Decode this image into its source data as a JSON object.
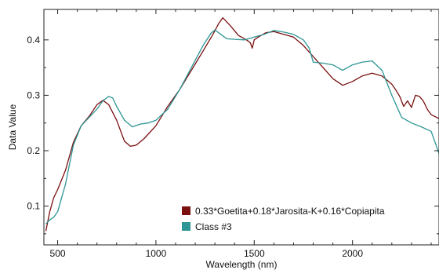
{
  "chart_data": {
    "type": "line",
    "xlabel": "Wavelength (nm)",
    "ylabel": "Data Value",
    "xlim": [
      430,
      2440
    ],
    "ylim": [
      0.03,
      0.455
    ],
    "xticks": [
      500,
      1000,
      1500,
      2000
    ],
    "yticks": [
      0.1,
      0.2,
      0.3,
      0.4
    ],
    "x_tick_labels": [
      "500",
      "1000",
      "1500",
      "2000"
    ],
    "y_tick_labels": [
      "0.1",
      "0.2",
      "0.3",
      "0.4"
    ],
    "grid": false,
    "legend_position": "bottom-right",
    "series": [
      {
        "name": "0.33*Goetita+0.18*Jarosita-K+0.16*Copiapita",
        "color": "#7a1010",
        "x": [
          440,
          460,
          480,
          500,
          540,
          580,
          620,
          660,
          700,
          730,
          760,
          800,
          840,
          870,
          900,
          940,
          1000,
          1060,
          1120,
          1180,
          1240,
          1290,
          1320,
          1340,
          1380,
          1420,
          1460,
          1480,
          1490,
          1500,
          1520,
          1560,
          1600,
          1650,
          1700,
          1750,
          1800,
          1850,
          1900,
          1950,
          2000,
          2050,
          2100,
          2150,
          2200,
          2220,
          2240,
          2260,
          2280,
          2300,
          2320,
          2340,
          2360,
          2380,
          2400,
          2440
        ],
        "y": [
          0.055,
          0.09,
          0.115,
          0.13,
          0.165,
          0.215,
          0.245,
          0.262,
          0.283,
          0.291,
          0.283,
          0.255,
          0.217,
          0.208,
          0.21,
          0.222,
          0.245,
          0.28,
          0.31,
          0.345,
          0.38,
          0.41,
          0.43,
          0.44,
          0.425,
          0.408,
          0.4,
          0.395,
          0.385,
          0.4,
          0.405,
          0.413,
          0.415,
          0.41,
          0.405,
          0.39,
          0.37,
          0.35,
          0.33,
          0.318,
          0.325,
          0.335,
          0.34,
          0.335,
          0.32,
          0.31,
          0.298,
          0.28,
          0.29,
          0.278,
          0.3,
          0.298,
          0.29,
          0.275,
          0.265,
          0.258
        ]
      },
      {
        "name": "Class #3",
        "color": "#2e9595",
        "x": [
          440,
          460,
          480,
          500,
          540,
          580,
          620,
          660,
          700,
          730,
          760,
          780,
          800,
          840,
          880,
          920,
          960,
          1000,
          1060,
          1120,
          1180,
          1240,
          1280,
          1300,
          1330,
          1360,
          1400,
          1450,
          1500,
          1550,
          1600,
          1650,
          1700,
          1750,
          1780,
          1800,
          1850,
          1900,
          1950,
          2000,
          2050,
          2100,
          2150,
          2200,
          2250,
          2300,
          2350,
          2400,
          2440
        ],
        "y": [
          0.068,
          0.075,
          0.08,
          0.09,
          0.14,
          0.21,
          0.245,
          0.26,
          0.275,
          0.29,
          0.298,
          0.295,
          0.28,
          0.255,
          0.243,
          0.248,
          0.25,
          0.255,
          0.275,
          0.31,
          0.35,
          0.39,
          0.412,
          0.418,
          0.41,
          0.402,
          0.401,
          0.4,
          0.405,
          0.41,
          0.417,
          0.414,
          0.41,
          0.4,
          0.385,
          0.36,
          0.358,
          0.355,
          0.345,
          0.355,
          0.36,
          0.362,
          0.345,
          0.3,
          0.26,
          0.25,
          0.243,
          0.235,
          0.195
        ]
      }
    ]
  }
}
